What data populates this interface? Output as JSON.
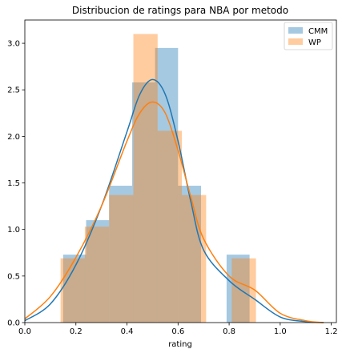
{
  "chart_data": {
    "type": "bar",
    "title": "Distribucion de ratings para NBA por metodo",
    "xlabel": "rating",
    "ylabel": "",
    "xlim": [
      0.0,
      1.22
    ],
    "ylim": [
      0.0,
      3.25
    ],
    "x_ticks": [
      "0.0",
      "0.2",
      "0.4",
      "0.6",
      "0.8",
      "1.0",
      "1.2"
    ],
    "x_tick_values": [
      0.0,
      0.2,
      0.4,
      0.6,
      0.8,
      1.0,
      1.2
    ],
    "y_ticks": [
      "0.0",
      "0.5",
      "1.0",
      "1.5",
      "2.0",
      "2.5",
      "3.0"
    ],
    "y_tick_values": [
      0.0,
      0.5,
      1.0,
      1.5,
      2.0,
      2.5,
      3.0
    ],
    "grid": false,
    "legend_position": "top-right",
    "series": [
      {
        "name": "CMM",
        "kind": "histogram",
        "color": "#1f77b4",
        "bins": [
          {
            "x0": 0.15,
            "x1": 0.24,
            "value": 0.73
          },
          {
            "x0": 0.24,
            "x1": 0.33,
            "value": 1.1
          },
          {
            "x0": 0.33,
            "x1": 0.42,
            "value": 1.47
          },
          {
            "x0": 0.42,
            "x1": 0.51,
            "value": 2.58
          },
          {
            "x0": 0.51,
            "x1": 0.6,
            "value": 2.95
          },
          {
            "x0": 0.6,
            "x1": 0.69,
            "value": 1.47
          },
          {
            "x0": 0.79,
            "x1": 0.88,
            "value": 0.73
          }
        ],
        "kde": {
          "x": [
            0.0,
            0.1,
            0.2,
            0.3,
            0.4,
            0.45,
            0.5,
            0.55,
            0.6,
            0.65,
            0.7,
            0.8,
            0.9,
            1.0,
            1.1,
            1.17
          ],
          "y": [
            0.02,
            0.2,
            0.62,
            1.25,
            2.05,
            2.45,
            2.61,
            2.45,
            1.95,
            1.3,
            0.78,
            0.45,
            0.25,
            0.06,
            0.01,
            0.0
          ]
        }
      },
      {
        "name": "WP",
        "kind": "histogram",
        "color": "#ff7f0e",
        "bins": [
          {
            "x0": 0.14,
            "x1": 0.235,
            "value": 0.69
          },
          {
            "x0": 0.235,
            "x1": 0.33,
            "value": 1.03
          },
          {
            "x0": 0.33,
            "x1": 0.425,
            "value": 1.37
          },
          {
            "x0": 0.425,
            "x1": 0.52,
            "value": 3.1
          },
          {
            "x0": 0.52,
            "x1": 0.615,
            "value": 2.06
          },
          {
            "x0": 0.615,
            "x1": 0.71,
            "value": 1.37
          },
          {
            "x0": 0.81,
            "x1": 0.905,
            "value": 0.69
          }
        ],
        "kde": {
          "x": [
            0.0,
            0.1,
            0.2,
            0.3,
            0.4,
            0.45,
            0.5,
            0.55,
            0.6,
            0.65,
            0.7,
            0.8,
            0.9,
            1.0,
            1.1,
            1.17
          ],
          "y": [
            0.04,
            0.28,
            0.7,
            1.25,
            1.95,
            2.25,
            2.37,
            2.25,
            1.85,
            1.35,
            0.9,
            0.5,
            0.35,
            0.1,
            0.02,
            0.0
          ]
        }
      }
    ]
  }
}
